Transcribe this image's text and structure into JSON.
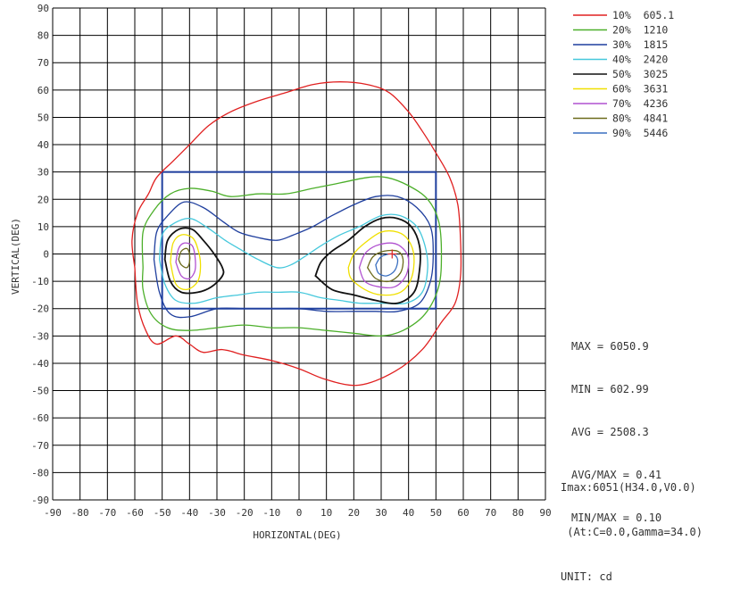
{
  "chart_data": {
    "type": "contour",
    "xlabel": "HORIZONTAL(DEG)",
    "ylabel": "VERTICAL(DEG)",
    "xlim": [
      -90,
      90
    ],
    "ylim": [
      -90,
      90
    ],
    "x_ticks": [
      -90,
      -80,
      -70,
      -60,
      -50,
      -40,
      -30,
      -20,
      -10,
      0,
      10,
      20,
      30,
      40,
      50,
      60,
      70,
      80,
      90
    ],
    "y_ticks": [
      -90,
      -80,
      -70,
      -60,
      -50,
      -40,
      -30,
      -20,
      -10,
      0,
      10,
      20,
      30,
      40,
      50,
      60,
      70,
      80,
      90
    ],
    "grid": true,
    "legend_position": "top-right",
    "levels": [
      {
        "label": "10%  605.1",
        "color": "#e02020"
      },
      {
        "label": "20%  1210",
        "color": "#4caf2a"
      },
      {
        "label": "30%  1815",
        "color": "#1f3f9e"
      },
      {
        "label": "40%  2420",
        "color": "#46c8dc"
      },
      {
        "label": "50%  3025",
        "color": "#111111"
      },
      {
        "label": "60%  3631",
        "color": "#f0e000"
      },
      {
        "label": "70%  4236",
        "color": "#b050d0"
      },
      {
        "label": "80%  4841",
        "color": "#6b6a1a"
      },
      {
        "label": "90%  5446",
        "color": "#3a6fc0"
      }
    ],
    "contours": [
      {
        "level": "10%",
        "points": [
          [
            -60,
            -5
          ],
          [
            -61,
            5
          ],
          [
            -59,
            15
          ],
          [
            -55,
            22
          ],
          [
            -52,
            28
          ],
          [
            -46,
            34
          ],
          [
            -40,
            40
          ],
          [
            -33,
            47
          ],
          [
            -25,
            52
          ],
          [
            -15,
            56
          ],
          [
            -5,
            59
          ],
          [
            5,
            62
          ],
          [
            15,
            63
          ],
          [
            25,
            62
          ],
          [
            33,
            59
          ],
          [
            40,
            52
          ],
          [
            45,
            45
          ],
          [
            50,
            37
          ],
          [
            55,
            28
          ],
          [
            58,
            18
          ],
          [
            59,
            5
          ],
          [
            59,
            -8
          ],
          [
            57,
            -18
          ],
          [
            52,
            -25
          ],
          [
            45,
            -35
          ],
          [
            35,
            -43
          ],
          [
            22,
            -48
          ],
          [
            10,
            -46
          ],
          [
            0,
            -42
          ],
          [
            -10,
            -39
          ],
          [
            -20,
            -37
          ],
          [
            -28,
            -35
          ],
          [
            -35,
            -36
          ],
          [
            -40,
            -33
          ],
          [
            -45,
            -30
          ],
          [
            -52,
            -33
          ],
          [
            -56,
            -28
          ],
          [
            -59,
            -18
          ],
          [
            -60,
            -5
          ]
        ]
      },
      {
        "level": "20%",
        "points": [
          [
            -57,
            -5
          ],
          [
            -57,
            8
          ],
          [
            -53,
            16
          ],
          [
            -47,
            22
          ],
          [
            -40,
            24
          ],
          [
            -32,
            23
          ],
          [
            -25,
            21
          ],
          [
            -15,
            22
          ],
          [
            -5,
            22
          ],
          [
            5,
            24
          ],
          [
            15,
            26
          ],
          [
            25,
            28
          ],
          [
            32,
            28
          ],
          [
            40,
            25
          ],
          [
            47,
            20
          ],
          [
            51,
            12
          ],
          [
            52,
            0
          ],
          [
            51,
            -12
          ],
          [
            46,
            -22
          ],
          [
            38,
            -28
          ],
          [
            30,
            -30
          ],
          [
            20,
            -29
          ],
          [
            10,
            -28
          ],
          [
            0,
            -27
          ],
          [
            -10,
            -27
          ],
          [
            -20,
            -26
          ],
          [
            -30,
            -27
          ],
          [
            -40,
            -28
          ],
          [
            -48,
            -27
          ],
          [
            -54,
            -22
          ],
          [
            -57,
            -13
          ],
          [
            -57,
            -5
          ]
        ]
      },
      {
        "level": "30%",
        "points": [
          [
            -53,
            -2
          ],
          [
            -52,
            8
          ],
          [
            -48,
            14
          ],
          [
            -42,
            19
          ],
          [
            -35,
            17
          ],
          [
            -28,
            12
          ],
          [
            -22,
            8
          ],
          [
            -15,
            6
          ],
          [
            -8,
            5
          ],
          [
            -2,
            7
          ],
          [
            5,
            10
          ],
          [
            12,
            14
          ],
          [
            20,
            18
          ],
          [
            28,
            21
          ],
          [
            36,
            21
          ],
          [
            43,
            17
          ],
          [
            48,
            10
          ],
          [
            49,
            0
          ],
          [
            48,
            -10
          ],
          [
            44,
            -18
          ],
          [
            36,
            -21
          ],
          [
            28,
            -21
          ],
          [
            20,
            -21
          ],
          [
            10,
            -21
          ],
          [
            0,
            -20
          ],
          [
            -10,
            -20
          ],
          [
            -20,
            -20
          ],
          [
            -30,
            -20
          ],
          [
            -40,
            -23
          ],
          [
            -47,
            -22
          ],
          [
            -51,
            -14
          ],
          [
            -53,
            -2
          ]
        ]
      },
      {
        "level": "40%",
        "points": [
          [
            -51,
            -2
          ],
          [
            -50,
            7
          ],
          [
            -46,
            11
          ],
          [
            -40,
            13
          ],
          [
            -34,
            10
          ],
          [
            -27,
            5
          ],
          [
            -22,
            2
          ],
          [
            -15,
            -2
          ],
          [
            -8,
            -5
          ],
          [
            -3,
            -4
          ],
          [
            2,
            -1
          ],
          [
            8,
            3
          ],
          [
            15,
            7
          ],
          [
            22,
            10
          ],
          [
            30,
            14
          ],
          [
            37,
            14
          ],
          [
            43,
            10
          ],
          [
            46,
            3
          ],
          [
            47,
            -5
          ],
          [
            45,
            -14
          ],
          [
            39,
            -18
          ],
          [
            30,
            -18
          ],
          [
            22,
            -18
          ],
          [
            15,
            -17
          ],
          [
            8,
            -16
          ],
          [
            0,
            -14
          ],
          [
            -8,
            -14
          ],
          [
            -15,
            -14
          ],
          [
            -22,
            -15
          ],
          [
            -30,
            -16
          ],
          [
            -38,
            -18
          ],
          [
            -45,
            -17
          ],
          [
            -49,
            -11
          ],
          [
            -51,
            -2
          ]
        ]
      },
      {
        "level": "50%",
        "points": [
          [
            -49,
            -2
          ],
          [
            -48,
            5
          ],
          [
            -44,
            9
          ],
          [
            -39,
            9
          ],
          [
            -35,
            5
          ],
          [
            -31,
            0
          ],
          [
            -28,
            -5
          ],
          [
            -28,
            -8
          ],
          [
            -32,
            -12
          ],
          [
            -37,
            -14
          ],
          [
            -43,
            -14
          ],
          [
            -47,
            -10
          ],
          [
            -49,
            -2
          ]
        ]
      },
      {
        "level": "50%",
        "points": [
          [
            6,
            -8
          ],
          [
            8,
            -3
          ],
          [
            12,
            1
          ],
          [
            18,
            5
          ],
          [
            24,
            10
          ],
          [
            30,
            13
          ],
          [
            36,
            13
          ],
          [
            41,
            10
          ],
          [
            44,
            3
          ],
          [
            44,
            -6
          ],
          [
            42,
            -14
          ],
          [
            36,
            -18
          ],
          [
            28,
            -17
          ],
          [
            20,
            -15
          ],
          [
            12,
            -13
          ],
          [
            6,
            -8
          ]
        ]
      },
      {
        "level": "60%",
        "points": [
          [
            -47,
            -3
          ],
          [
            -46,
            4
          ],
          [
            -43,
            7
          ],
          [
            -39,
            6
          ],
          [
            -37,
            2
          ],
          [
            -36,
            -4
          ],
          [
            -37,
            -10
          ],
          [
            -41,
            -13
          ],
          [
            -45,
            -11
          ],
          [
            -47,
            -3
          ]
        ]
      },
      {
        "level": "60%",
        "points": [
          [
            18,
            -5
          ],
          [
            20,
            0
          ],
          [
            24,
            4
          ],
          [
            30,
            8
          ],
          [
            36,
            8
          ],
          [
            40,
            5
          ],
          [
            42,
            -1
          ],
          [
            41,
            -9
          ],
          [
            37,
            -14
          ],
          [
            30,
            -15
          ],
          [
            24,
            -13
          ],
          [
            19,
            -9
          ],
          [
            18,
            -5
          ]
        ]
      },
      {
        "level": "70%",
        "points": [
          [
            -45,
            -3
          ],
          [
            -44,
            2
          ],
          [
            -42,
            4
          ],
          [
            -39,
            3
          ],
          [
            -38,
            -1
          ],
          [
            -38,
            -6
          ],
          [
            -40,
            -9
          ],
          [
            -43,
            -8
          ],
          [
            -45,
            -3
          ]
        ]
      },
      {
        "level": "70%",
        "points": [
          [
            22,
            -5
          ],
          [
            24,
            0
          ],
          [
            28,
            3
          ],
          [
            34,
            4
          ],
          [
            38,
            2
          ],
          [
            40,
            -2
          ],
          [
            39,
            -8
          ],
          [
            35,
            -12
          ],
          [
            29,
            -12
          ],
          [
            24,
            -10
          ],
          [
            22,
            -5
          ]
        ]
      },
      {
        "level": "80%",
        "points": [
          [
            -44,
            -2
          ],
          [
            -43,
            1
          ],
          [
            -41,
            2
          ],
          [
            -40,
            0
          ],
          [
            -40,
            -3
          ],
          [
            -41,
            -5
          ],
          [
            -43,
            -4
          ],
          [
            -44,
            -2
          ]
        ]
      },
      {
        "level": "80%",
        "points": [
          [
            25,
            -5
          ],
          [
            27,
            -1
          ],
          [
            31,
            1
          ],
          [
            36,
            1
          ],
          [
            38,
            -2
          ],
          [
            37,
            -7
          ],
          [
            33,
            -10
          ],
          [
            28,
            -9
          ],
          [
            25,
            -5
          ]
        ]
      },
      {
        "level": "90%",
        "points": [
          [
            28,
            -4
          ],
          [
            30,
            -1
          ],
          [
            34,
            0
          ],
          [
            36,
            -2
          ],
          [
            35,
            -6
          ],
          [
            32,
            -8
          ],
          [
            29,
            -7
          ],
          [
            28,
            -4
          ]
        ]
      }
    ],
    "rectangle": {
      "x": [
        -50,
        50
      ],
      "y": [
        -20,
        30
      ],
      "color": "#1f3f9e"
    },
    "peak_marker": {
      "x": 34,
      "y": 0,
      "color": "#e02020"
    }
  },
  "stats": {
    "max": "MAX = 6050.9",
    "min": "MIN = 602.99",
    "avg": "AVG = 2508.3",
    "avg_max": "AVG/MAX = 0.41",
    "min_max": "MIN/MAX = 0.10"
  },
  "imax": {
    "line1": "Imax:6051(H34.0,V0.0)",
    "line2": " (At:C=0.0,Gamma=34.0)",
    "unit": "UNIT: cd"
  }
}
